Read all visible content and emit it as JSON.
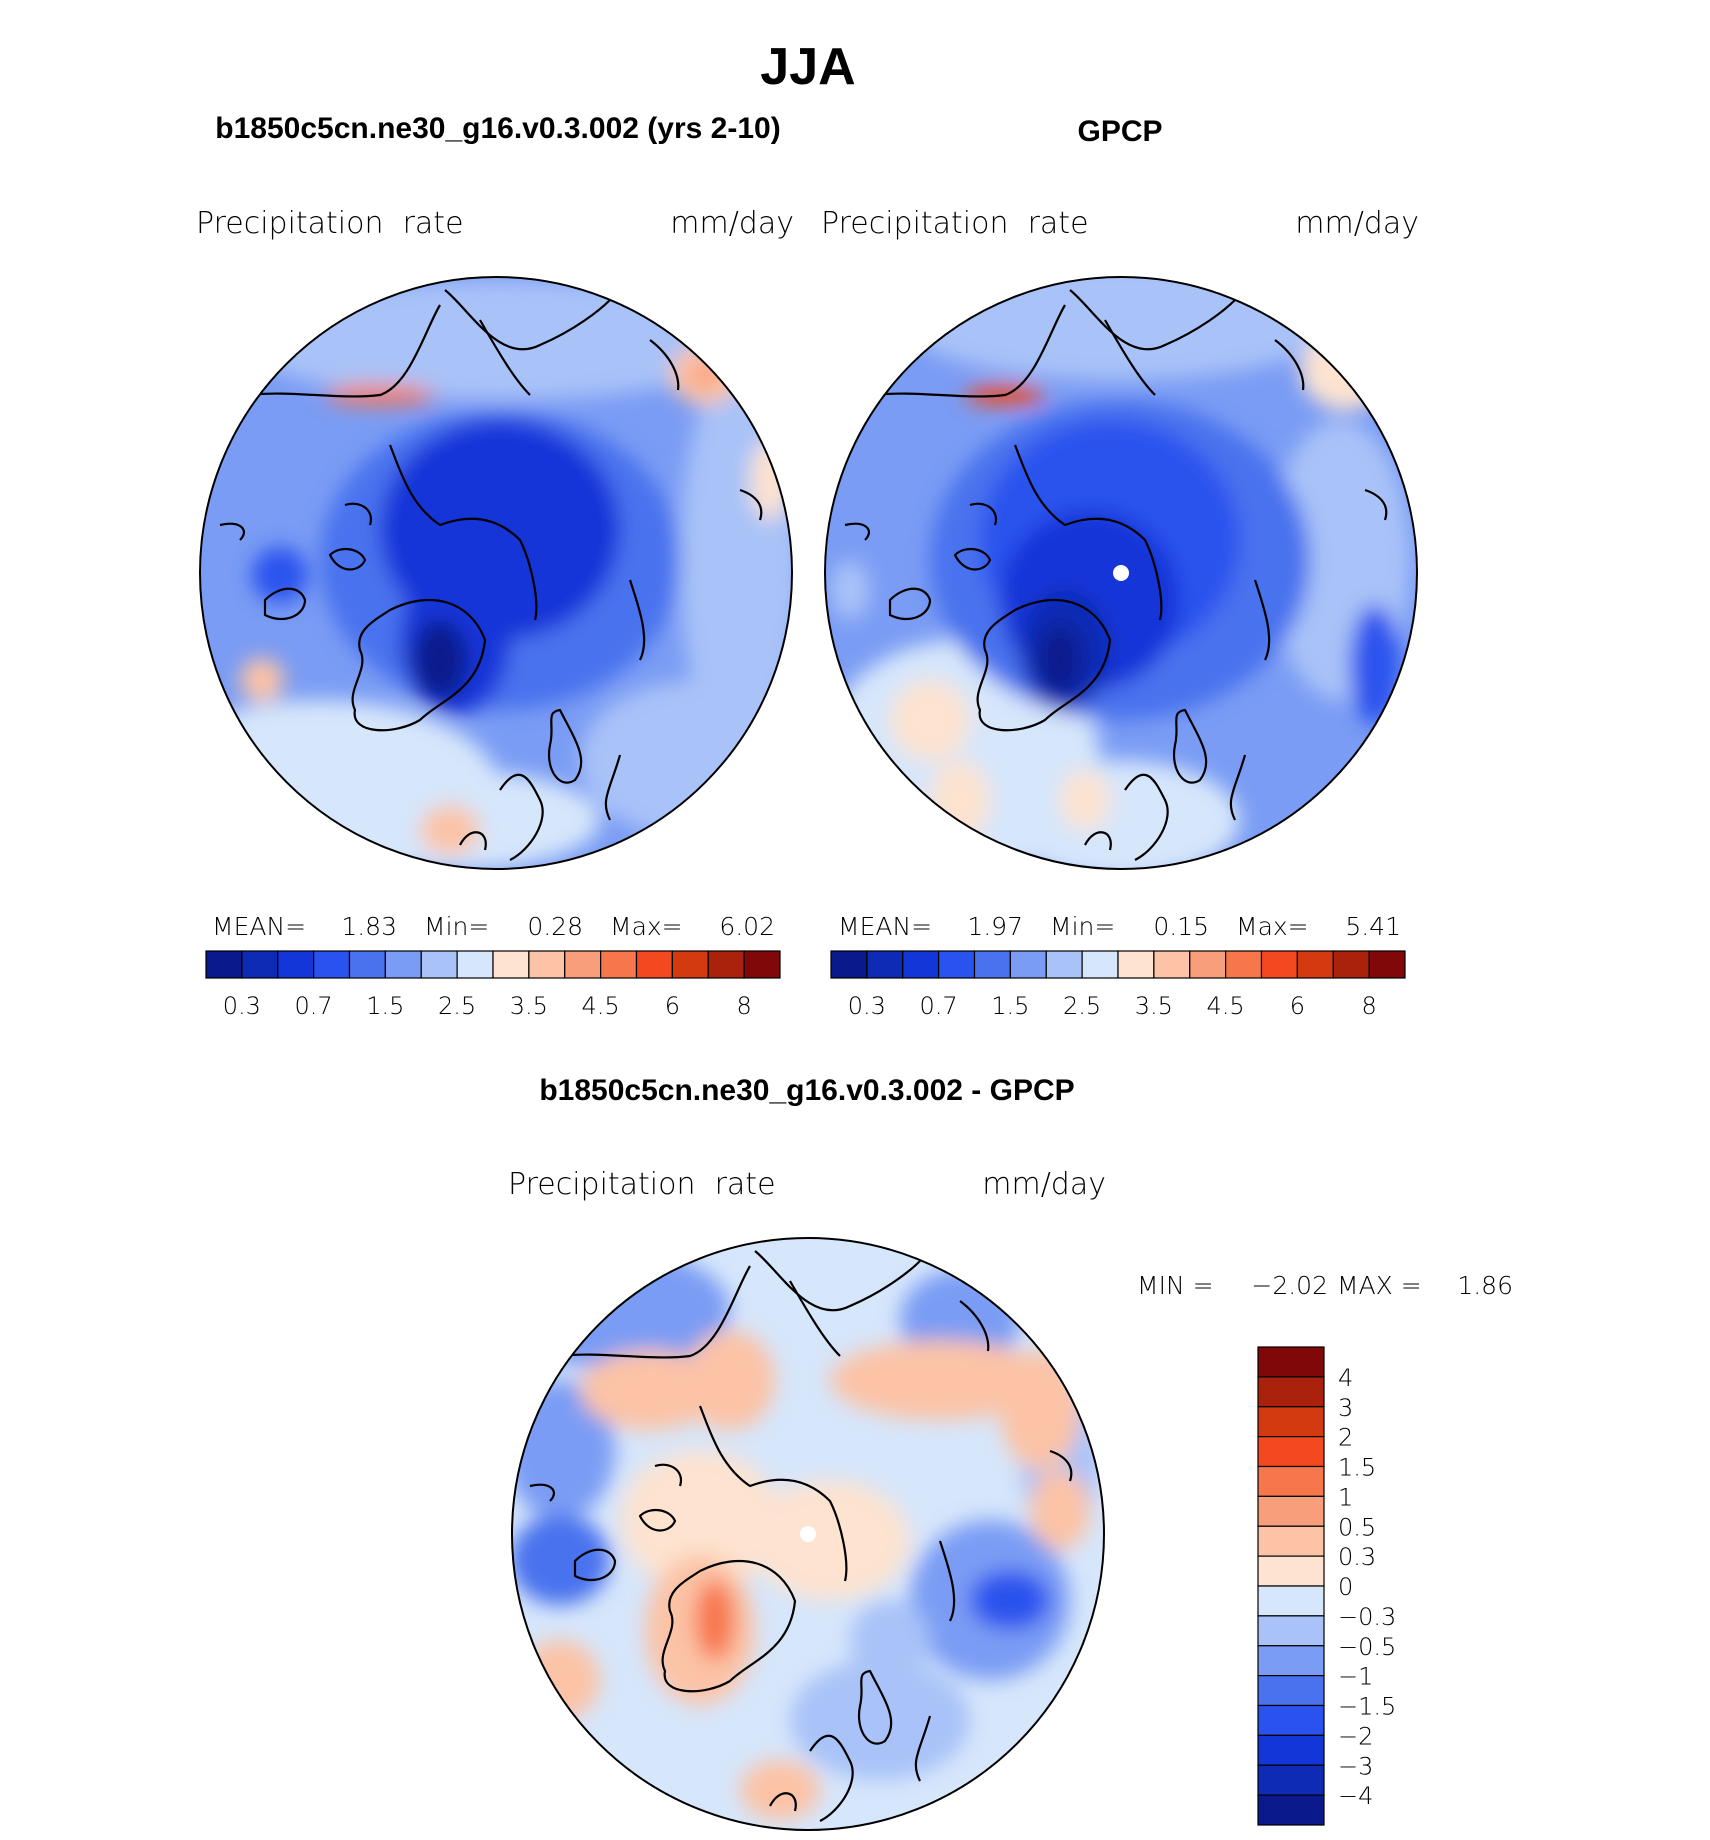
{
  "chart_data": {
    "type": "heatmap",
    "suptitle": "JJA",
    "scale_colors": [
      "#0a1a8c",
      "#0d2bb4",
      "#1336d8",
      "#2a52ee",
      "#4a72ee",
      "#7a9cf4",
      "#a9c2f8",
      "#d6e6fb",
      "#fde3d0",
      "#fcc3a6",
      "#f99e7a",
      "#f7774d",
      "#f4491f",
      "#d43a10",
      "#aa220b",
      "#800808"
    ],
    "diff_colors": [
      "#0a1a8c",
      "#0d2bb4",
      "#1336d8",
      "#2a52ee",
      "#4a72ee",
      "#7a9cf4",
      "#a9c2f8",
      "#d6e6fb",
      "#fde3d0",
      "#fcc3a6",
      "#f99e7a",
      "#f7774d",
      "#f4491f",
      "#d43a10",
      "#aa220b",
      "#800808"
    ],
    "maps": [
      {
        "id": "model",
        "title": "b1850c5cn.ne30_g16.v0.3.002 (yrs 2-10)",
        "left_label": "Precipitation  rate",
        "right_label": "mm/day",
        "stats": {
          "mean_label": "MEAN=",
          "mean": "1.83",
          "min_label": "Min=",
          "min": "0.28",
          "max_label": "Max=",
          "max": "6.02"
        },
        "colorbar_ticks": [
          "0.3",
          "0.7",
          "1.5",
          "2.5",
          "3.5",
          "4.5",
          "6",
          "8"
        ],
        "pole_marker": false
      },
      {
        "id": "obs",
        "title": "GPCP",
        "left_label": "Precipitation  rate",
        "right_label": "mm/day",
        "stats": {
          "mean_label": "MEAN=",
          "mean": "1.97",
          "min_label": "Min=",
          "min": "0.15",
          "max_label": "Max=",
          "max": "5.41"
        },
        "colorbar_ticks": [
          "0.3",
          "0.7",
          "1.5",
          "2.5",
          "3.5",
          "4.5",
          "6",
          "8"
        ],
        "pole_marker": true
      },
      {
        "id": "diff",
        "title": "b1850c5cn.ne30_g16.v0.3.002 - GPCP",
        "left_label": "Precipitation  rate",
        "right_label": "mm/day",
        "stats": {
          "min_label": "MIN =",
          "min": "−2.02",
          "max_label": "MAX =",
          "max": "1.86"
        },
        "colorbar_ticks": [
          "4",
          "3",
          "2",
          "1.5",
          "1",
          "0.5",
          "0.3",
          "0",
          "−0.3",
          "−0.5",
          "−1",
          "−1.5",
          "−2",
          "−3",
          "−4"
        ],
        "pole_marker": true
      }
    ]
  }
}
